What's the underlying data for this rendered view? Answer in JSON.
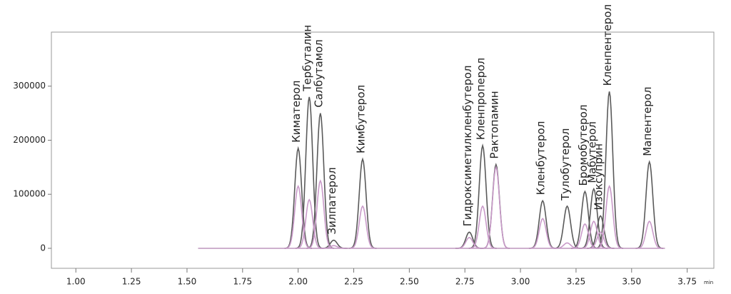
{
  "chart_data": {
    "type": "chromatogram",
    "x_unit": "min",
    "categories": [
      "Киматерол",
      "Тербуталин",
      "Салбутамол",
      "Зилпатерол",
      "Кимбутерол",
      "Гидроксиметилкленбутерол",
      "Кленпроперол",
      "Рактопамин",
      "Кленбутерол",
      "Тулобутерол",
      "Бромобутерол",
      "Мабутерол",
      "Изоксуприн",
      "Кленпентерол",
      "Мапентерол"
    ],
    "x": [
      2.0,
      2.05,
      2.1,
      2.16,
      2.29,
      2.77,
      2.83,
      2.89,
      3.1,
      3.21,
      3.29,
      3.33,
      3.36,
      3.4,
      3.58
    ],
    "series": [
      {
        "color": "#5a5a5a",
        "values": [
          185000,
          280000,
          250000,
          15000,
          165000,
          30000,
          190000,
          155000,
          88000,
          78000,
          105000,
          110000,
          60000,
          290000,
          160000
        ]
      },
      {
        "color": "#c99ac9",
        "values": [
          115000,
          90000,
          125000,
          5000,
          78000,
          20000,
          78000,
          150000,
          55000,
          10000,
          45000,
          50000,
          30000,
          115000,
          50000
        ]
      }
    ],
    "trace_start": 1.55,
    "trace_end": 3.65,
    "xlim": [
      0.89,
      3.87
    ],
    "ylim": [
      -37000,
      400000
    ],
    "xticks": [
      {
        "value": 1,
        "label": "1.00"
      },
      {
        "value": 1.25,
        "label": "1.25"
      },
      {
        "value": 1.5,
        "label": "1.50"
      },
      {
        "value": 1.75,
        "label": "1.75"
      },
      {
        "value": 2,
        "label": "2.00"
      },
      {
        "value": 2.25,
        "label": "2.25"
      },
      {
        "value": 2.5,
        "label": "2.50"
      },
      {
        "value": 2.75,
        "label": "2.75"
      },
      {
        "value": 3,
        "label": "3.00"
      },
      {
        "value": 3.25,
        "label": "3.25"
      },
      {
        "value": 3.5,
        "label": "3.50"
      },
      {
        "value": 3.75,
        "label": "3.75"
      }
    ],
    "yticks": [
      0,
      100000,
      200000,
      300000
    ],
    "grid": false
  }
}
